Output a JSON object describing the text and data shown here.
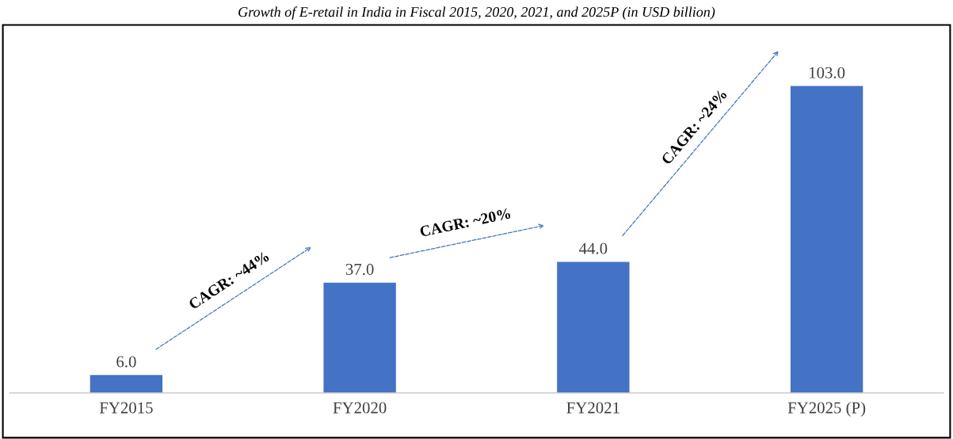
{
  "chart_data": {
    "type": "bar",
    "title": "Growth of E-retail in India in Fiscal 2015, 2020, 2021, and 2025P (in USD billion)",
    "categories": [
      "FY2015",
      "FY2020",
      "FY2021",
      "FY2025 (P)"
    ],
    "values": [
      6.0,
      37.0,
      44.0,
      103.0
    ],
    "color": "#4472c4",
    "value_labels": [
      "6.0",
      "37.0",
      "44.0",
      "103.0"
    ],
    "annotations": [
      "CAGR: ~44%",
      "CAGR: ~20%",
      "CAGR: ~24%"
    ],
    "grid": false,
    "legend": false
  }
}
